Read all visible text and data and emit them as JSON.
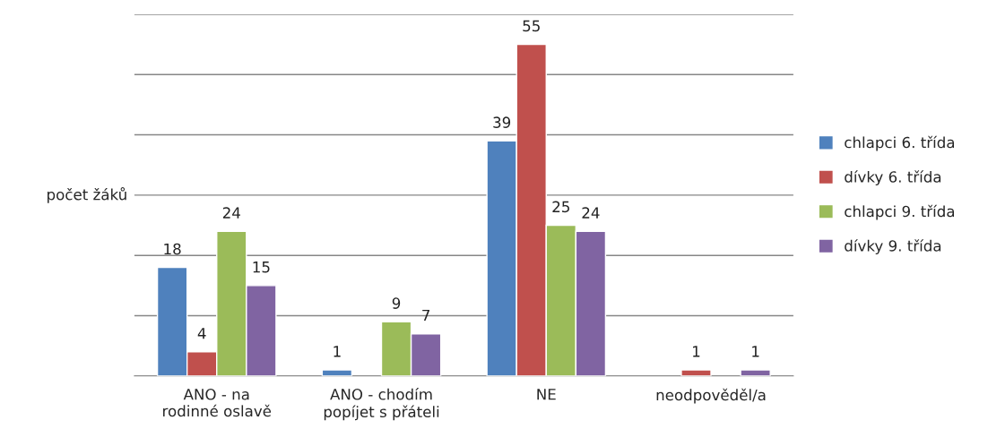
{
  "chart_data": {
    "type": "bar",
    "categories": [
      "ANO - na rodinné oslavě",
      "ANO - chodím popíjet s přáteli",
      "NE",
      "neodpověděl/a"
    ],
    "series": [
      {
        "name": "chlapci 6. třída",
        "color": "#4f81bd",
        "values": [
          18,
          1,
          39,
          null
        ]
      },
      {
        "name": "dívky 6. třída",
        "color": "#c0504d",
        "values": [
          4,
          null,
          55,
          1
        ]
      },
      {
        "name": "chlapci 9. třída",
        "color": "#9bbb59",
        "values": [
          24,
          9,
          25,
          null
        ]
      },
      {
        "name": "dívky 9. třída",
        "color": "#8064a2",
        "values": [
          15,
          7,
          24,
          1
        ]
      }
    ],
    "ylabel": "počet žáků",
    "ylim": [
      0,
      60
    ],
    "yticks": [
      {
        "value": 0,
        "label": null
      },
      {
        "value": 10,
        "label": null
      },
      {
        "value": 20,
        "label": null
      },
      {
        "value": 30,
        "label": null
      },
      {
        "value": 40,
        "label": null
      },
      {
        "value": 50,
        "label": null
      },
      {
        "value": 60,
        "label": null
      }
    ],
    "tick_labels": "x",
    "grid": "y",
    "legend": "right",
    "data_labels": true
  }
}
